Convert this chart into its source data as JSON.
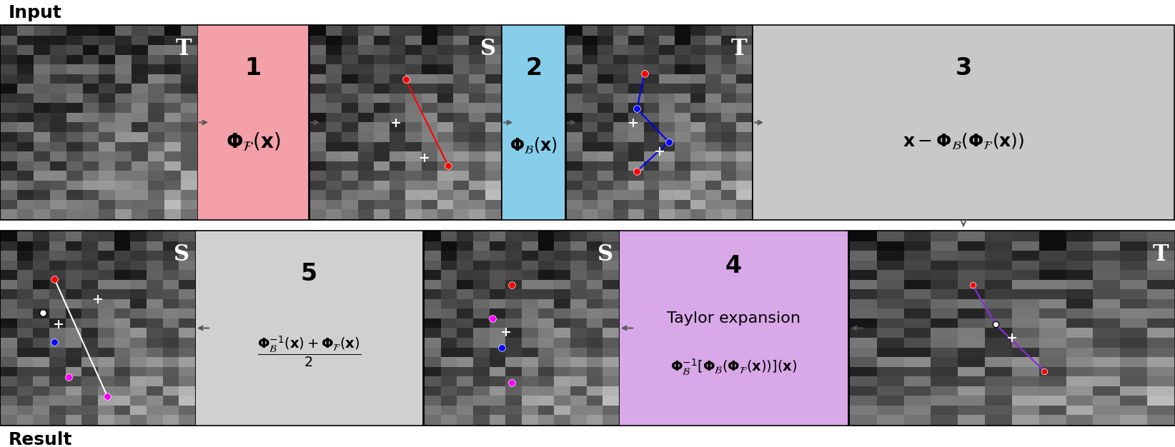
{
  "bg_color": "#ffffff",
  "panel_colors": {
    "img": "#1a1a1a",
    "step1": "#f4a0a8",
    "step2": "#87ceeb",
    "step3": "#c8c8c8",
    "step4": "#d8a8e8",
    "step5": "#d0d0d0"
  },
  "top_row_labels": [
    "T",
    "1",
    "S",
    "2",
    "T",
    "3"
  ],
  "bottom_row_labels": [
    "S",
    "5",
    "S",
    "4",
    "T"
  ],
  "input_label": "Input",
  "result_label": "Result",
  "step1_formula": "$\\mathbf{\\Phi}_{\\mathcal{F}}(\\mathbf{x})$",
  "step2_formula": "$\\mathbf{\\Phi}_{\\mathcal{B}}(\\mathbf{x})$",
  "step3_formula": "$\\mathbf{x}-\\mathbf{\\Phi}_{\\mathcal{B}}(\\mathbf{\\Phi}_{\\mathcal{F}}(\\mathbf{x}))$",
  "step4_formula_line1": "Taylor expansion",
  "step4_formula_line2": "$\\mathbf{\\Phi}_{\\mathcal{B}}^{-1}[\\mathbf{\\Phi}_{\\mathcal{B}}(\\mathbf{\\Phi}_{\\mathcal{F}}(\\mathbf{x}))](\\mathbf{x})$",
  "step5_formula": "$\\dfrac{\\mathbf{\\Phi}_{\\mathcal{B}}^{-1}(\\mathbf{x})+\\mathbf{\\Phi}_{\\mathcal{F}}(\\mathbf{x})}{2}$"
}
